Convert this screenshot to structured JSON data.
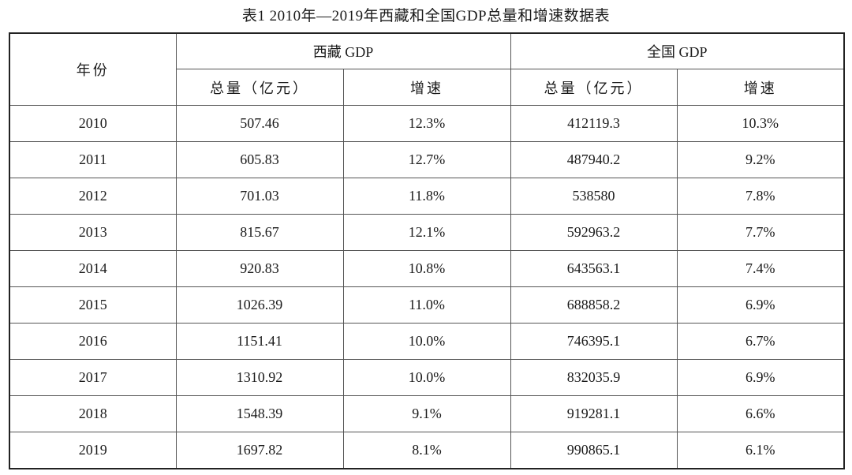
{
  "caption": "表1   2010年—2019年西藏和全国GDP总量和增速数据表",
  "header": {
    "year": "年份",
    "group_xizang": "西藏 GDP",
    "group_national": "全国 GDP",
    "total": "总量（亿元）",
    "growth": "增速"
  },
  "rows": [
    {
      "year": "2010",
      "xz_total": "507.46",
      "xz_growth": "12.3%",
      "cn_total": "412119.3",
      "cn_growth": "10.3%"
    },
    {
      "year": "2011",
      "xz_total": "605.83",
      "xz_growth": "12.7%",
      "cn_total": "487940.2",
      "cn_growth": "9.2%"
    },
    {
      "year": "2012",
      "xz_total": "701.03",
      "xz_growth": "11.8%",
      "cn_total": "538580",
      "cn_growth": "7.8%"
    },
    {
      "year": "2013",
      "xz_total": "815.67",
      "xz_growth": "12.1%",
      "cn_total": "592963.2",
      "cn_growth": "7.7%"
    },
    {
      "year": "2014",
      "xz_total": "920.83",
      "xz_growth": "10.8%",
      "cn_total": "643563.1",
      "cn_growth": "7.4%"
    },
    {
      "year": "2015",
      "xz_total": "1026.39",
      "xz_growth": "11.0%",
      "cn_total": "688858.2",
      "cn_growth": "6.9%"
    },
    {
      "year": "2016",
      "xz_total": "1151.41",
      "xz_growth": "10.0%",
      "cn_total": "746395.1",
      "cn_growth": "6.7%"
    },
    {
      "year": "2017",
      "xz_total": "1310.92",
      "xz_growth": "10.0%",
      "cn_total": "832035.9",
      "cn_growth": "6.9%"
    },
    {
      "year": "2018",
      "xz_total": "1548.39",
      "xz_growth": "9.1%",
      "cn_total": "919281.1",
      "cn_growth": "6.6%"
    },
    {
      "year": "2019",
      "xz_total": "1697.82",
      "xz_growth": "8.1%",
      "cn_total": "990865.1",
      "cn_growth": "6.1%"
    }
  ]
}
